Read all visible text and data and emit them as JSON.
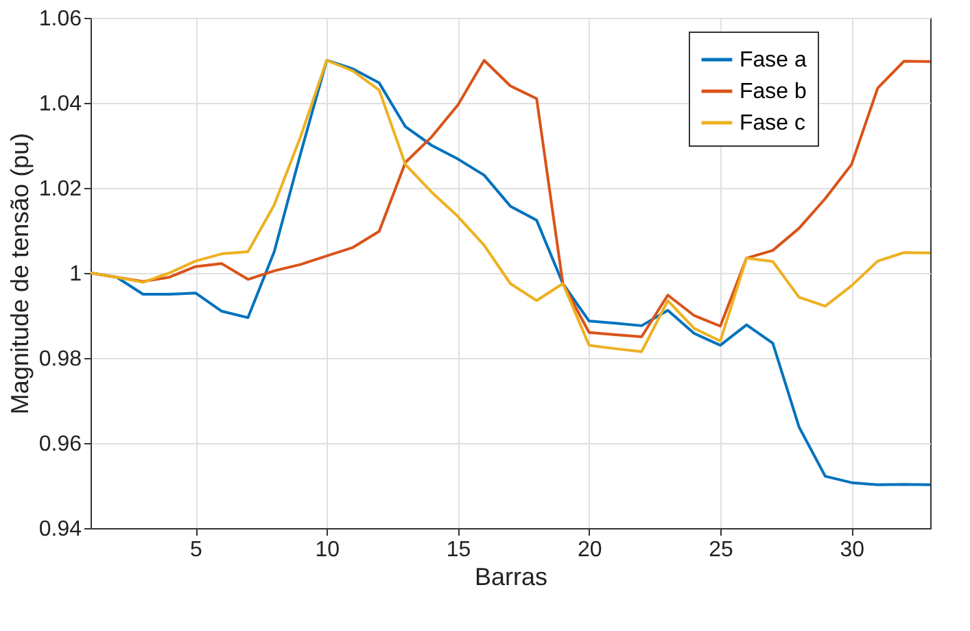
{
  "chart_data": {
    "type": "line",
    "xlabel": "Barras",
    "ylabel": "Magnitude de tensão (pu)",
    "x": [
      1,
      2,
      3,
      4,
      5,
      6,
      7,
      8,
      9,
      10,
      11,
      12,
      13,
      14,
      15,
      16,
      17,
      18,
      19,
      20,
      21,
      22,
      23,
      24,
      25,
      26,
      27,
      28,
      29,
      30,
      31,
      32,
      33
    ],
    "series": [
      {
        "name": "Fase a",
        "color": "#0072bd",
        "values": [
          1.0,
          0.999,
          0.995,
          0.995,
          0.9953,
          0.991,
          0.9895,
          1.005,
          1.028,
          1.05,
          1.048,
          1.0447,
          1.0344,
          1.03,
          1.0268,
          1.023,
          1.0157,
          1.0124,
          0.9975,
          0.9887,
          0.9882,
          0.9876,
          0.9912,
          0.9858,
          0.983,
          0.9878,
          0.9835,
          0.9638,
          0.9522,
          0.9507,
          0.9502,
          0.9503,
          0.9502
        ]
      },
      {
        "name": "Fase b",
        "color": "#d95319",
        "values": [
          1.0,
          0.999,
          0.998,
          0.999,
          1.0015,
          1.0022,
          0.9985,
          1.0005,
          1.002,
          1.004,
          1.006,
          1.0098,
          1.026,
          1.032,
          1.0395,
          1.05,
          1.044,
          1.041,
          0.9975,
          0.986,
          0.9855,
          0.985,
          0.9948,
          0.99,
          0.9875,
          1.0035,
          1.0053,
          1.0105,
          1.0175,
          1.0255,
          1.0435,
          1.0498,
          1.0497
        ]
      },
      {
        "name": "Fase c",
        "color": "#edb120",
        "values": [
          1.0,
          0.999,
          0.9978,
          1.0,
          1.0028,
          1.0045,
          1.005,
          1.016,
          1.032,
          1.05,
          1.0475,
          1.043,
          1.0255,
          1.019,
          1.0133,
          1.0065,
          0.9975,
          0.9935,
          0.9975,
          0.983,
          0.9822,
          0.9815,
          0.9935,
          0.987,
          0.984,
          1.0035,
          1.0027,
          0.9943,
          0.9922,
          0.997,
          1.0028,
          1.0048,
          1.0047
        ]
      }
    ],
    "xlim": [
      1,
      33
    ],
    "xticks": [
      5,
      10,
      15,
      20,
      25,
      30
    ],
    "ylim": [
      0.94,
      1.06
    ],
    "yticks": [
      0.94,
      0.96,
      0.98,
      {
        "value": 1,
        "label": "1"
      },
      1.02,
      1.04,
      1.06
    ],
    "grid": true,
    "legend": "top right",
    "marker": "none",
    "line_style": "solid"
  }
}
